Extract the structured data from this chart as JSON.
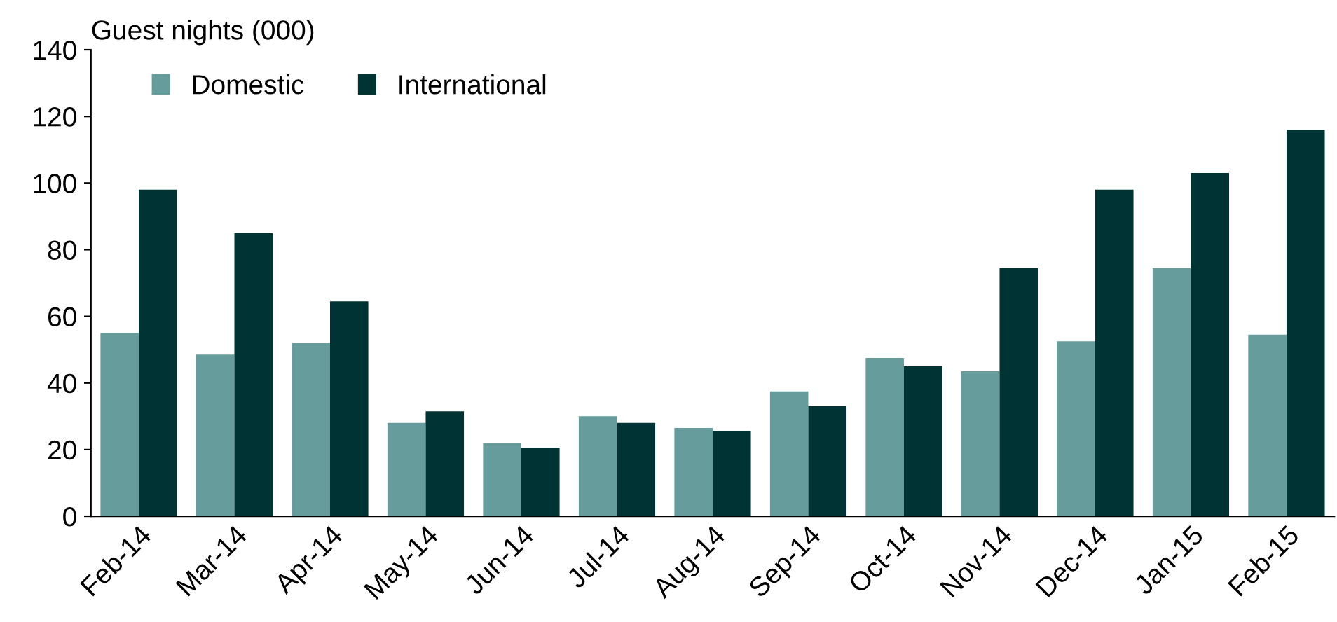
{
  "chart_data": {
    "type": "bar",
    "ylabel": "Guest nights (000)",
    "categories": [
      "Feb-14",
      "Mar-14",
      "Apr-14",
      "May-14",
      "Jun-14",
      "Jul-14",
      "Aug-14",
      "Sep-14",
      "Oct-14",
      "Nov-14",
      "Dec-14",
      "Jan-15",
      "Feb-15"
    ],
    "series": [
      {
        "name": "Domestic",
        "color": "#669c9c",
        "values": [
          55,
          48.5,
          52,
          28,
          22,
          30,
          26.5,
          37.5,
          47.5,
          43.5,
          52.5,
          74.5,
          54.5
        ]
      },
      {
        "name": "International",
        "color": "#003333",
        "values": [
          98,
          85,
          64.5,
          31.5,
          20.5,
          28,
          25.5,
          33,
          45,
          74.5,
          98,
          103,
          116
        ]
      }
    ],
    "ylim": [
      0,
      140
    ],
    "yticks": [
      0,
      20,
      40,
      60,
      80,
      100,
      120,
      140
    ],
    "grid": false,
    "legend": "top left"
  }
}
